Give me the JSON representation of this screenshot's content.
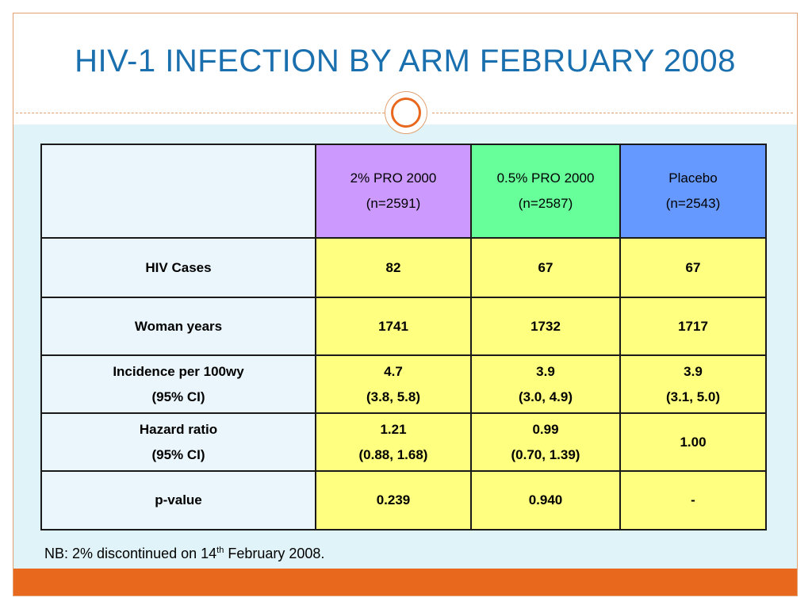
{
  "title": "HIV-1 INFECTION BY ARM FEBRUARY 2008",
  "colors": {
    "title": "#1a6fae",
    "accent_orange": "#e8681e",
    "header_purple": "#cc99ff",
    "header_green": "#66ff99",
    "header_blue": "#6699ff",
    "data_yellow": "#ffff80"
  },
  "table": {
    "columns": [
      {
        "line1": "2% PRO 2000",
        "line2": "(n=2591)"
      },
      {
        "line1": "0.5% PRO 2000",
        "line2": "(n=2587)"
      },
      {
        "line1": "Placebo",
        "line2": "(n=2543)"
      }
    ],
    "rows": [
      {
        "label1": "HIV Cases",
        "label2": "",
        "cells": [
          {
            "v1": "82",
            "v2": ""
          },
          {
            "v1": "67",
            "v2": ""
          },
          {
            "v1": "67",
            "v2": ""
          }
        ]
      },
      {
        "label1": "Woman years",
        "label2": "",
        "cells": [
          {
            "v1": "1741",
            "v2": ""
          },
          {
            "v1": "1732",
            "v2": ""
          },
          {
            "v1": "1717",
            "v2": ""
          }
        ]
      },
      {
        "label1": "Incidence per 100wy",
        "label2": "(95% CI)",
        "cells": [
          {
            "v1": "4.7",
            "v2": "(3.8, 5.8)"
          },
          {
            "v1": "3.9",
            "v2": "(3.0, 4.9)"
          },
          {
            "v1": "3.9",
            "v2": "(3.1, 5.0)"
          }
        ]
      },
      {
        "label1": "Hazard ratio",
        "label2": "(95% CI)",
        "cells": [
          {
            "v1": "1.21",
            "v2": "(0.88, 1.68)"
          },
          {
            "v1": "0.99",
            "v2": "(0.70, 1.39)"
          },
          {
            "v1": "1.00",
            "v2": ""
          }
        ]
      },
      {
        "label1": "p-value",
        "label2": "",
        "cells": [
          {
            "v1": "0.239",
            "v2": ""
          },
          {
            "v1": "0.940",
            "v2": ""
          },
          {
            "v1": "-",
            "v2": ""
          }
        ]
      }
    ]
  },
  "note": {
    "prefix": "NB: 2% discontinued on 14",
    "sup": "th",
    "suffix": " February 2008."
  }
}
